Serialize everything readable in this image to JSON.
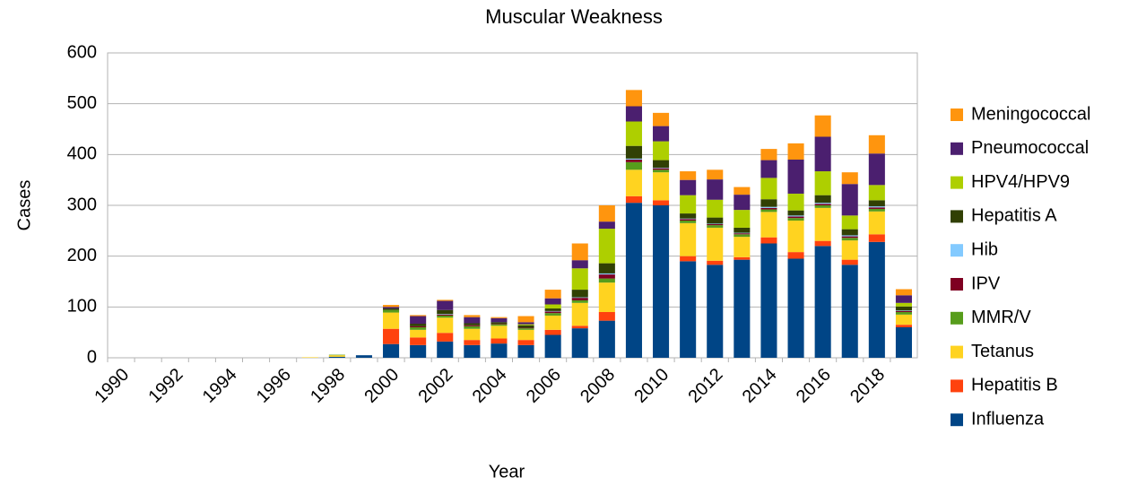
{
  "chart_data": {
    "type": "stacked_bar",
    "title": "Muscular Weakness",
    "x_label": "Year",
    "y_label": "Cases",
    "categories": [
      "1990",
      null,
      "1992",
      null,
      "1994",
      null,
      "1996",
      null,
      "1998",
      null,
      "2000",
      null,
      "2002",
      null,
      "2004",
      null,
      "2006",
      null,
      "2008",
      null,
      "2010",
      null,
      "2012",
      null,
      "2014",
      null,
      "2016",
      null,
      "2018",
      null
    ],
    "ylim": [
      0,
      600
    ],
    "yticks": [
      0,
      100,
      200,
      300,
      400,
      500,
      600
    ],
    "grid": true,
    "legend": "right",
    "series": [
      {
        "name": "Influenza",
        "color": "#004586",
        "values": [
          0,
          0,
          0,
          0,
          0,
          0,
          0,
          0,
          2,
          5,
          27,
          25,
          32,
          25,
          28,
          25,
          45,
          58,
          73,
          305,
          300,
          190,
          183,
          193,
          225,
          195,
          220,
          183,
          228,
          60
        ]
      },
      {
        "name": "Hepatitis B",
        "color": "#ff420e",
        "values": [
          0,
          0,
          0,
          0,
          0,
          0,
          0,
          0,
          0,
          0,
          30,
          15,
          17,
          10,
          10,
          10,
          10,
          5,
          17,
          13,
          10,
          10,
          8,
          5,
          12,
          13,
          10,
          10,
          15,
          5
        ]
      },
      {
        "name": "Tetanus",
        "color": "#ffd320",
        "values": [
          0,
          0,
          0,
          0,
          0,
          0,
          0,
          1,
          3,
          0,
          32,
          15,
          30,
          22,
          25,
          20,
          28,
          45,
          58,
          52,
          55,
          65,
          65,
          40,
          50,
          62,
          65,
          38,
          45,
          20
        ]
      },
      {
        "name": "MMR/V",
        "color": "#579d1c",
        "values": [
          0,
          0,
          0,
          0,
          0,
          0,
          0,
          0,
          1,
          0,
          5,
          5,
          4,
          5,
          3,
          3,
          5,
          5,
          8,
          15,
          5,
          5,
          5,
          5,
          5,
          5,
          5,
          5,
          5,
          5
        ]
      },
      {
        "name": "IPV",
        "color": "#7e0021",
        "values": [
          0,
          0,
          0,
          0,
          0,
          0,
          0,
          0,
          0,
          0,
          0,
          2,
          2,
          2,
          1,
          1,
          3,
          5,
          8,
          5,
          3,
          3,
          2,
          2,
          3,
          3,
          3,
          3,
          3,
          2
        ]
      },
      {
        "name": "Hib",
        "color": "#83caff",
        "values": [
          0,
          0,
          0,
          0,
          0,
          0,
          0,
          0,
          0,
          0,
          0,
          0,
          1,
          0,
          0,
          0,
          1,
          1,
          2,
          2,
          1,
          1,
          1,
          1,
          2,
          2,
          2,
          2,
          2,
          1
        ]
      },
      {
        "name": "Hepatitis A",
        "color": "#314004",
        "values": [
          0,
          0,
          0,
          0,
          0,
          0,
          0,
          0,
          0,
          0,
          3,
          5,
          8,
          4,
          3,
          5,
          5,
          15,
          20,
          25,
          15,
          10,
          12,
          10,
          15,
          10,
          15,
          12,
          12,
          8
        ]
      },
      {
        "name": "HPV4/HPV9",
        "color": "#aecf00",
        "values": [
          0,
          0,
          0,
          0,
          0,
          0,
          0,
          0,
          0,
          0,
          0,
          0,
          0,
          0,
          0,
          2,
          8,
          42,
          68,
          48,
          37,
          36,
          35,
          35,
          42,
          33,
          47,
          27,
          30,
          7
        ]
      },
      {
        "name": "Pneumococcal",
        "color": "#4b1f6f",
        "values": [
          0,
          0,
          0,
          0,
          0,
          0,
          0,
          0,
          0,
          0,
          3,
          15,
          18,
          12,
          8,
          4,
          12,
          16,
          14,
          30,
          30,
          30,
          40,
          30,
          35,
          67,
          68,
          62,
          62,
          15
        ]
      },
      {
        "name": "Meningococcal",
        "color": "#ff950e",
        "values": [
          0,
          0,
          0,
          0,
          0,
          0,
          0,
          0,
          0,
          0,
          4,
          2,
          2,
          4,
          2,
          12,
          17,
          33,
          32,
          32,
          26,
          17,
          19,
          15,
          22,
          32,
          42,
          23,
          36,
          12
        ]
      }
    ]
  }
}
